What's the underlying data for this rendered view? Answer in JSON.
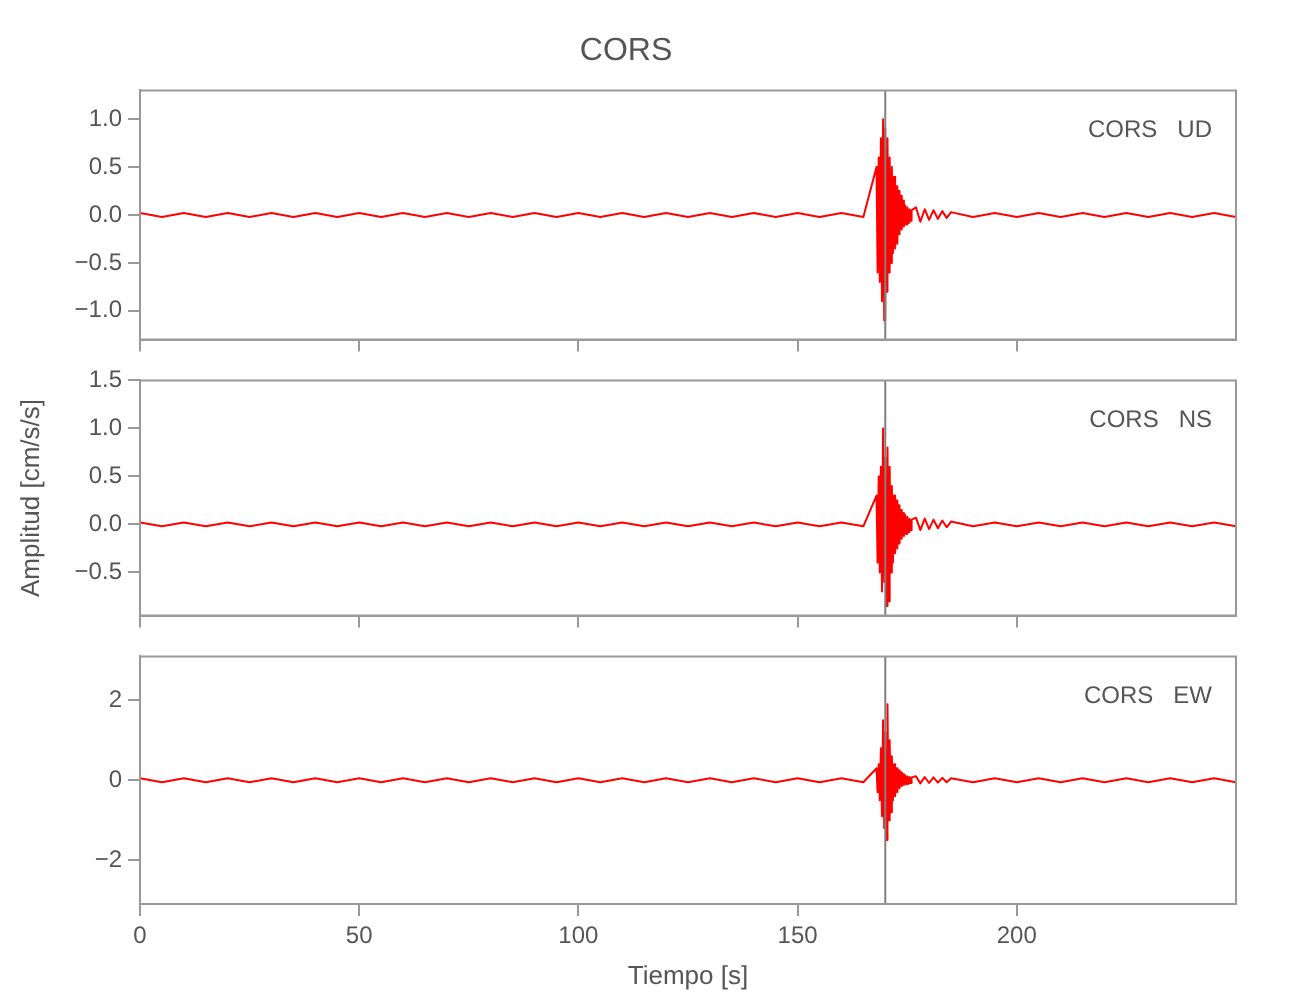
{
  "chart_data": [
    {
      "type": "line",
      "title": "CORS",
      "annotations": [
        "CORS   UD"
      ],
      "tick_labels": "y",
      "grid": false,
      "marker": "none",
      "line_style": "solid",
      "x": [
        0,
        5,
        10,
        15,
        20,
        25,
        30,
        35,
        40,
        45,
        50,
        55,
        60,
        65,
        70,
        75,
        80,
        85,
        90,
        95,
        100,
        105,
        110,
        115,
        120,
        125,
        130,
        135,
        140,
        145,
        150,
        155,
        160,
        165,
        168,
        168.25,
        168.5,
        168.75,
        169,
        169.25,
        169.5,
        169.75,
        170,
        170.25,
        170.5,
        170.75,
        171,
        171.25,
        171.5,
        171.75,
        172,
        172.25,
        172.5,
        172.75,
        173,
        173.25,
        173.5,
        173.75,
        174,
        174.25,
        174.5,
        174.75,
        175,
        175.25,
        175.5,
        175.75,
        176,
        177,
        178,
        179,
        180,
        181,
        182,
        183,
        184,
        185,
        190,
        195,
        200,
        205,
        210,
        215,
        220,
        225,
        230,
        235,
        240,
        245,
        250
      ],
      "xlim": [
        0,
        250
      ],
      "xticks": [
        0,
        50,
        100,
        150,
        200
      ],
      "ylim": [
        -1.3,
        1.3
      ],
      "yticks": [
        {
          "value": -1,
          "label": "−1.0"
        },
        {
          "value": -0.5,
          "label": "−0.5"
        },
        {
          "value": 0,
          "label": "0.0"
        },
        {
          "value": 0.5,
          "label": "0.5"
        },
        {
          "value": 1,
          "label": "1.0"
        }
      ],
      "ref_lines": [
        {
          "axis": "x",
          "value": 170,
          "color": "#808080"
        }
      ],
      "series": [
        {
          "color": "#ff0000",
          "values": [
            0.02,
            -0.02,
            0.02,
            -0.02,
            0.02,
            -0.02,
            0.02,
            -0.02,
            0.02,
            -0.02,
            0.02,
            -0.02,
            0.02,
            -0.02,
            0.02,
            -0.02,
            0.02,
            -0.02,
            0.02,
            -0.02,
            0.02,
            -0.02,
            0.02,
            -0.02,
            0.02,
            -0.02,
            0.02,
            -0.02,
            0.02,
            -0.02,
            0.02,
            -0.02,
            0.02,
            -0.02,
            0.5,
            -0.6,
            0.6,
            -0.7,
            0.8,
            -0.9,
            1.0,
            -1.1,
            0.9,
            -0.8,
            0.8,
            -0.6,
            0.6,
            -0.5,
            0.5,
            -0.4,
            0.4,
            -0.35,
            0.3,
            -0.3,
            0.25,
            -0.2,
            0.2,
            -0.15,
            0.15,
            -0.12,
            0.1,
            -0.1,
            0.08,
            -0.08,
            0.06,
            -0.06,
            0.05,
            0.08,
            -0.07,
            0.06,
            -0.05,
            0.05,
            -0.04,
            0.04,
            -0.03,
            0.03,
            -0.02,
            0.02,
            -0.02,
            0.02,
            -0.02,
            0.02,
            -0.02,
            0.02,
            -0.02,
            0.02,
            -0.02,
            0.02,
            -0.02
          ]
        }
      ]
    },
    {
      "type": "line",
      "ylabel": "Amplitud [cm/s/s]",
      "annotations": [
        "CORS   NS"
      ],
      "tick_labels": "y",
      "grid": false,
      "marker": "none",
      "line_style": "solid",
      "x": [
        0,
        5,
        10,
        15,
        20,
        25,
        30,
        35,
        40,
        45,
        50,
        55,
        60,
        65,
        70,
        75,
        80,
        85,
        90,
        95,
        100,
        105,
        110,
        115,
        120,
        125,
        130,
        135,
        140,
        145,
        150,
        155,
        160,
        165,
        168,
        168.25,
        168.5,
        168.75,
        169,
        169.25,
        169.5,
        169.75,
        170,
        170.25,
        170.5,
        170.75,
        171,
        171.25,
        171.5,
        171.75,
        172,
        172.25,
        172.5,
        172.75,
        173,
        173.25,
        173.5,
        173.75,
        174,
        174.25,
        174.5,
        174.75,
        175,
        175.25,
        175.5,
        175.75,
        176,
        177,
        178,
        179,
        180,
        181,
        182,
        183,
        184,
        185,
        190,
        195,
        200,
        205,
        210,
        215,
        220,
        225,
        230,
        235,
        240,
        245,
        250
      ],
      "xlim": [
        0,
        250
      ],
      "xticks": [
        0,
        50,
        100,
        150,
        200
      ],
      "ylim": [
        -0.95,
        1.5
      ],
      "yticks": [
        {
          "value": -0.5,
          "label": "−0.5"
        },
        {
          "value": 0,
          "label": "0.0"
        },
        {
          "value": 0.5,
          "label": "0.5"
        },
        {
          "value": 1,
          "label": "1.0"
        },
        {
          "value": 1.5,
          "label": "1.5"
        }
      ],
      "ref_lines": [
        {
          "axis": "x",
          "value": 170,
          "color": "#808080"
        }
      ],
      "series": [
        {
          "color": "#ff0000",
          "values": [
            0.02,
            -0.02,
            0.02,
            -0.02,
            0.02,
            -0.02,
            0.02,
            -0.02,
            0.02,
            -0.02,
            0.02,
            -0.02,
            0.02,
            -0.02,
            0.02,
            -0.02,
            0.02,
            -0.02,
            0.02,
            -0.02,
            0.02,
            -0.02,
            0.02,
            -0.02,
            0.02,
            -0.02,
            0.02,
            -0.02,
            0.02,
            -0.02,
            0.02,
            -0.02,
            0.02,
            -0.02,
            0.3,
            -0.4,
            0.5,
            -0.5,
            0.6,
            -0.7,
            1.0,
            -0.6,
            0.7,
            -0.85,
            0.8,
            -0.8,
            0.6,
            -0.5,
            0.4,
            -0.4,
            0.3,
            -0.3,
            0.25,
            -0.25,
            0.2,
            -0.2,
            0.15,
            -0.15,
            0.12,
            -0.12,
            0.1,
            -0.1,
            0.08,
            -0.08,
            0.06,
            -0.06,
            0.05,
            0.07,
            -0.06,
            0.06,
            -0.05,
            0.05,
            -0.04,
            0.04,
            -0.03,
            0.03,
            -0.02,
            0.02,
            -0.02,
            0.02,
            -0.02,
            0.02,
            -0.02,
            0.02,
            -0.02,
            0.02,
            -0.02,
            0.02,
            -0.02
          ]
        }
      ]
    },
    {
      "type": "line",
      "xlabel": "Tiempo [s]",
      "annotations": [
        "CORS   EW"
      ],
      "grid": false,
      "marker": "none",
      "line_style": "solid",
      "x": [
        0,
        5,
        10,
        15,
        20,
        25,
        30,
        35,
        40,
        45,
        50,
        55,
        60,
        65,
        70,
        75,
        80,
        85,
        90,
        95,
        100,
        105,
        110,
        115,
        120,
        125,
        130,
        135,
        140,
        145,
        150,
        155,
        160,
        165,
        168,
        168.25,
        168.5,
        168.75,
        169,
        169.25,
        169.5,
        169.75,
        170,
        170.25,
        170.5,
        170.75,
        171,
        171.25,
        171.5,
        171.75,
        172,
        172.25,
        172.5,
        172.75,
        173,
        173.25,
        173.5,
        173.75,
        174,
        174.25,
        174.5,
        174.75,
        175,
        175.25,
        175.5,
        175.75,
        176,
        177,
        178,
        179,
        180,
        181,
        182,
        183,
        184,
        185,
        190,
        195,
        200,
        205,
        210,
        215,
        220,
        225,
        230,
        235,
        240,
        245,
        250
      ],
      "xlim": [
        0,
        250
      ],
      "xticks": [
        0,
        50,
        100,
        150,
        200
      ],
      "ylim": [
        -3.1,
        3.1
      ],
      "yticks": [
        {
          "value": -2,
          "label": "−2"
        },
        0,
        2
      ],
      "ref_lines": [
        {
          "axis": "x",
          "value": 170,
          "color": "#808080"
        }
      ],
      "series": [
        {
          "color": "#ff0000",
          "values": [
            0.05,
            -0.05,
            0.05,
            -0.05,
            0.05,
            -0.05,
            0.05,
            -0.05,
            0.05,
            -0.05,
            0.05,
            -0.05,
            0.05,
            -0.05,
            0.05,
            -0.05,
            0.05,
            -0.05,
            0.05,
            -0.05,
            0.05,
            -0.05,
            0.05,
            -0.05,
            0.05,
            -0.05,
            0.05,
            -0.05,
            0.05,
            -0.05,
            0.05,
            -0.05,
            0.05,
            -0.05,
            0.3,
            -0.3,
            0.4,
            -0.5,
            0.8,
            -0.9,
            1.5,
            -1.2,
            1.2,
            -1.5,
            1.9,
            -1.0,
            1.0,
            -0.8,
            0.6,
            -0.5,
            0.4,
            -0.4,
            0.3,
            -0.3,
            0.25,
            -0.2,
            0.2,
            -0.15,
            0.15,
            -0.12,
            0.12,
            -0.1,
            0.1,
            -0.08,
            0.08,
            -0.07,
            0.07,
            0.1,
            -0.08,
            0.08,
            -0.07,
            0.07,
            -0.06,
            0.06,
            -0.05,
            0.05,
            -0.05,
            0.05,
            -0.05,
            0.05,
            -0.05,
            0.05,
            -0.05,
            0.05,
            -0.05,
            0.05,
            -0.05,
            0.05,
            -0.05
          ]
        }
      ]
    }
  ]
}
